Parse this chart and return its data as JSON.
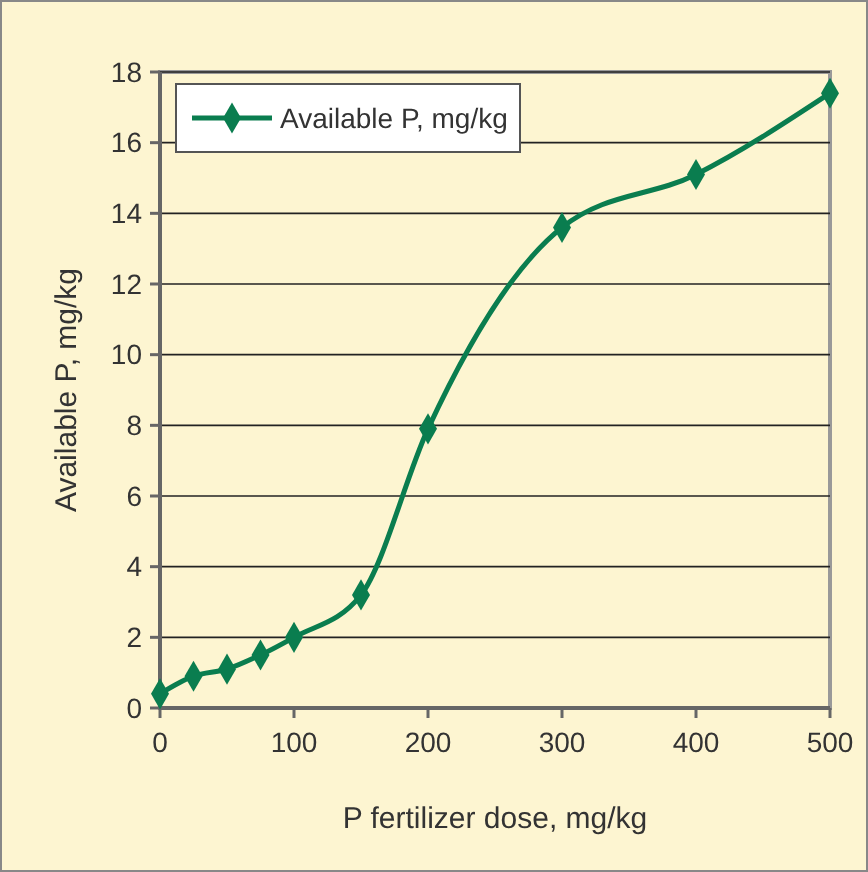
{
  "chart_data": {
    "type": "line",
    "xlabel": "P fertilizer dose, mg/kg",
    "ylabel": "Available P, mg/kg",
    "x": [
      0,
      25,
      50,
      75,
      100,
      150,
      200,
      300,
      400,
      500
    ],
    "series": [
      {
        "name": "Available P, mg/kg",
        "color": "#0a7d4f",
        "values": [
          0.4,
          0.9,
          1.1,
          1.5,
          2.0,
          3.2,
          7.9,
          13.6,
          15.1,
          17.4
        ]
      }
    ],
    "xlim": [
      0,
      500
    ],
    "xticks": [
      0,
      100,
      200,
      300,
      400,
      500
    ],
    "ylim": [
      0,
      18
    ],
    "yticks": [
      0,
      2,
      4,
      6,
      8,
      10,
      12,
      14,
      16,
      18
    ],
    "grid": "y",
    "legend": "top left",
    "marker": "diamond",
    "line_style": "solid"
  }
}
